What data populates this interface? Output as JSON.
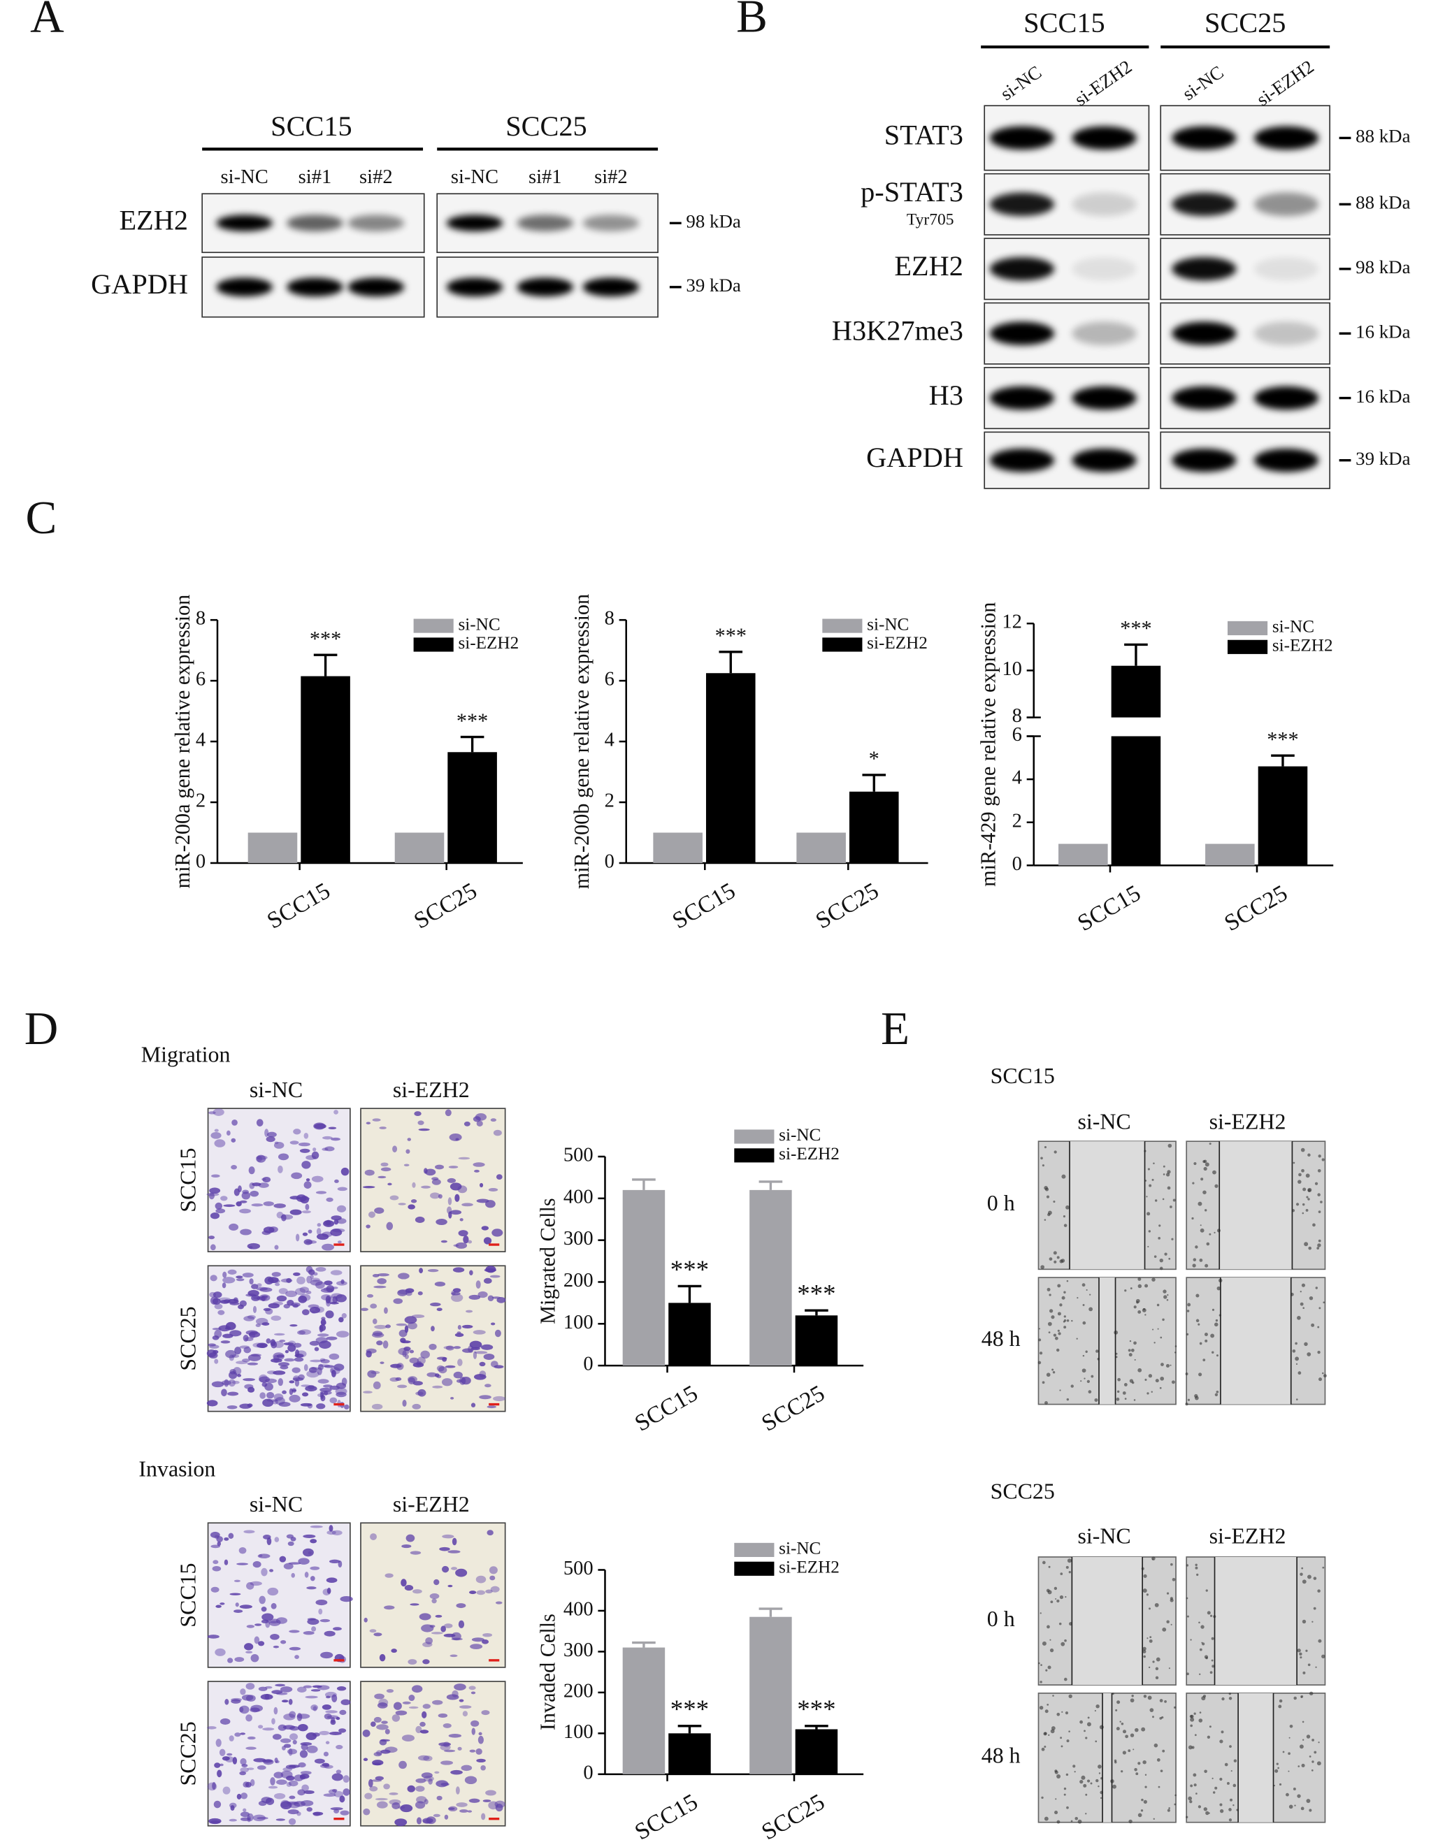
{
  "panel_labels": [
    "A",
    "B",
    "C",
    "D",
    "E"
  ],
  "blot_a": {
    "groups": [
      "SCC15",
      "SCC25"
    ],
    "lanes": [
      "si-NC",
      "si#1",
      "si#2"
    ],
    "rows": [
      "EZH2",
      "GAPDH"
    ],
    "sizes": [
      "98 kDa",
      "39 kDa"
    ]
  },
  "blot_b": {
    "groups": [
      "SCC15",
      "SCC25"
    ],
    "lanes": [
      "si-NC",
      "si-EZH2"
    ],
    "rows": [
      "STAT3",
      "p-STAT3",
      "EZH2",
      "H3K27me3",
      "H3",
      "GAPDH"
    ],
    "phospho_site": "Tyr705",
    "sizes": [
      "88 kDa",
      "88 kDa",
      "98 kDa",
      "16 kDa",
      "16 kDa",
      "39 kDa"
    ]
  },
  "chart_data": [
    {
      "type": "bar",
      "y_label": "miR-200a gene relative expression",
      "categories": [
        "SCC15",
        "SCC25"
      ],
      "series": [
        {
          "name": "si-NC",
          "color": "#a3a3a8",
          "values": [
            1,
            1
          ]
        },
        {
          "name": "si-EZH2",
          "color": "#000000",
          "values": [
            6.15,
            3.65
          ],
          "errors": [
            0.7,
            0.5
          ],
          "annotations": [
            "***",
            "***"
          ]
        }
      ],
      "ylim": [
        0,
        8
      ],
      "yticks": [
        0,
        2,
        4,
        6,
        8
      ]
    },
    {
      "type": "bar",
      "y_label": "miR-200b gene relative expression",
      "categories": [
        "SCC15",
        "SCC25"
      ],
      "series": [
        {
          "name": "si-NC",
          "color": "#a3a3a8",
          "values": [
            1,
            1
          ]
        },
        {
          "name": "si-EZH2",
          "color": "#000000",
          "values": [
            6.25,
            2.35
          ],
          "errors": [
            0.7,
            0.55
          ],
          "annotations": [
            "***",
            "*"
          ]
        }
      ],
      "ylim": [
        0,
        8
      ],
      "yticks": [
        0,
        2,
        4,
        6,
        8
      ]
    },
    {
      "type": "bar",
      "y_label": "miR-429 gene relative expression",
      "categories": [
        "SCC15",
        "SCC25"
      ],
      "series": [
        {
          "name": "si-NC",
          "color": "#a3a3a8",
          "values": [
            1,
            1
          ]
        },
        {
          "name": "si-EZH2",
          "color": "#000000",
          "values": [
            10.2,
            4.6
          ],
          "errors": [
            0.9,
            0.5
          ],
          "annotations": [
            "***",
            "***"
          ]
        }
      ],
      "ylim": [
        0,
        12
      ],
      "y_break": [
        6,
        8
      ],
      "yticks": [
        0,
        2,
        4,
        6,
        8,
        10,
        12
      ]
    },
    {
      "type": "bar",
      "y_label": "Migrated Cells",
      "categories": [
        "SCC15",
        "SCC25"
      ],
      "series": [
        {
          "name": "si-NC",
          "color": "#a3a3a8",
          "values": [
            420,
            420
          ],
          "errors": [
            25,
            20
          ]
        },
        {
          "name": "si-EZH2",
          "color": "#000000",
          "values": [
            150,
            120
          ],
          "errors": [
            40,
            12
          ],
          "annotations": [
            "***",
            "***"
          ]
        }
      ],
      "ylim": [
        0,
        500
      ],
      "yticks": [
        0,
        100,
        200,
        300,
        400,
        500
      ]
    },
    {
      "type": "bar",
      "y_label": "Invaded Cells",
      "categories": [
        "SCC15",
        "SCC25"
      ],
      "series": [
        {
          "name": "si-NC",
          "color": "#a3a3a8",
          "values": [
            310,
            385
          ],
          "errors": [
            12,
            20
          ]
        },
        {
          "name": "si-EZH2",
          "color": "#000000",
          "values": [
            100,
            110
          ],
          "errors": [
            18,
            8
          ],
          "annotations": [
            "***",
            "***"
          ]
        }
      ],
      "ylim": [
        0,
        500
      ],
      "yticks": [
        0,
        100,
        200,
        300,
        400,
        500
      ]
    }
  ],
  "panel_d": {
    "sections": [
      {
        "title": "Migration",
        "columns": [
          "si-NC",
          "si-EZH2"
        ],
        "rows": [
          "SCC15",
          "SCC25"
        ]
      },
      {
        "title": "Invasion",
        "columns": [
          "si-NC",
          "si-EZH2"
        ],
        "rows": [
          "SCC15",
          "SCC25"
        ]
      }
    ]
  },
  "panel_e": {
    "sections": [
      {
        "title": "SCC15",
        "columns": [
          "si-NC",
          "si-EZH2"
        ],
        "rows": [
          "0 h",
          "48 h"
        ]
      },
      {
        "title": "SCC25",
        "columns": [
          "si-NC",
          "si-EZH2"
        ],
        "rows": [
          "0 h",
          "48 h"
        ]
      }
    ]
  }
}
